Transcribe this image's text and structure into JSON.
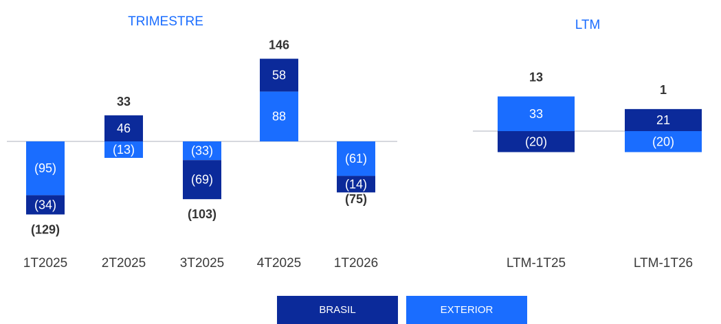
{
  "chart_data": [
    {
      "type": "bar",
      "stacked": true,
      "title": "TRIMESTRE",
      "categories": [
        "1T2025",
        "2T2025",
        "3T2025",
        "4T2025",
        "1T2026"
      ],
      "series": [
        {
          "name": "BRASIL",
          "values": [
            -34,
            46,
            -69,
            58,
            -14
          ],
          "labels": [
            "(34)",
            "46",
            "(69)",
            "58",
            "(14)"
          ]
        },
        {
          "name": "EXTERIOR",
          "values": [
            -95,
            -13,
            -33,
            88,
            -61
          ],
          "labels": [
            "(95)",
            "(13)",
            "(33)",
            "88",
            "(61)"
          ]
        }
      ],
      "totals": [
        -129,
        33,
        -103,
        146,
        -75
      ],
      "total_labels": [
        "(129)",
        "33",
        "(103)",
        "146",
        "(75)"
      ]
    },
    {
      "type": "bar",
      "stacked": true,
      "title": "LTM",
      "categories": [
        "LTM-1T25",
        "LTM-1T26"
      ],
      "series": [
        {
          "name": "BRASIL",
          "values": [
            -20,
            21
          ],
          "labels": [
            "(20)",
            "21"
          ]
        },
        {
          "name": "EXTERIOR",
          "values": [
            33,
            -20
          ],
          "labels": [
            "33",
            "(20)"
          ]
        }
      ],
      "totals": [
        13,
        1
      ],
      "total_labels": [
        "13",
        "1"
      ]
    }
  ],
  "legend": [
    {
      "name": "BRASIL",
      "color": "#0b2a9a"
    },
    {
      "name": "EXTERIOR",
      "color": "#1a6dff"
    }
  ],
  "colors": {
    "brasil": "#0b2a9a",
    "exterior": "#1a6dff",
    "axis": "#c8ccd4",
    "title": "#1a6dff"
  }
}
